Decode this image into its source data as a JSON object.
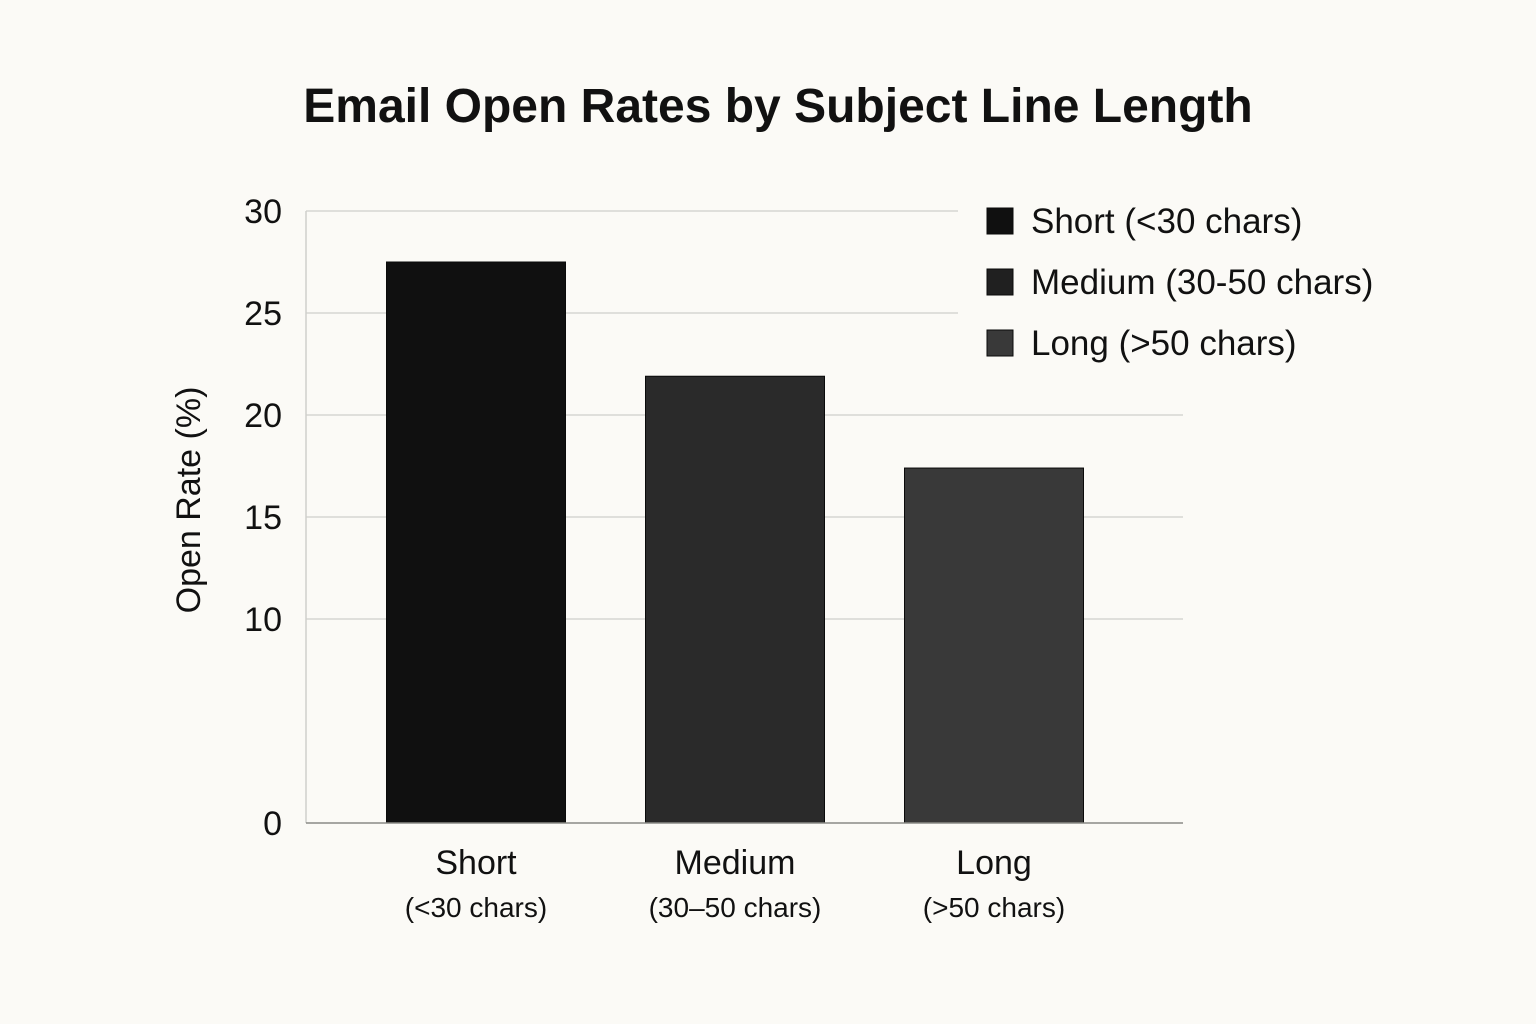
{
  "chart_data": {
    "type": "bar",
    "title": "Email Open Rates by Subject Line Length",
    "xlabel": "",
    "ylabel": "Open Rate (%)",
    "yticks": [
      "0",
      "10",
      "15",
      "20",
      "25",
      "30"
    ],
    "tick_values": [
      0,
      10,
      15,
      20,
      25,
      30
    ],
    "categories": [
      {
        "label": "Short",
        "sublabel": "(<30 chars)"
      },
      {
        "label": "Medium",
        "sublabel": "(30–50 chars)"
      },
      {
        "label": "Long",
        "sublabel": "(>50 chars)"
      }
    ],
    "values": [
      27.5,
      21.9,
      17.4
    ],
    "colors": [
      "#101010",
      "#2a2a2a",
      "#393939"
    ],
    "legend": {
      "placement": "top-right",
      "entries": [
        {
          "label": "Short (<30 chars)",
          "color": "#101010"
        },
        {
          "label": "Medium (30-50 chars)",
          "color": "#202020"
        },
        {
          "label": "Long (>50 chars)",
          "color": "#393939"
        }
      ]
    },
    "grid": true
  }
}
